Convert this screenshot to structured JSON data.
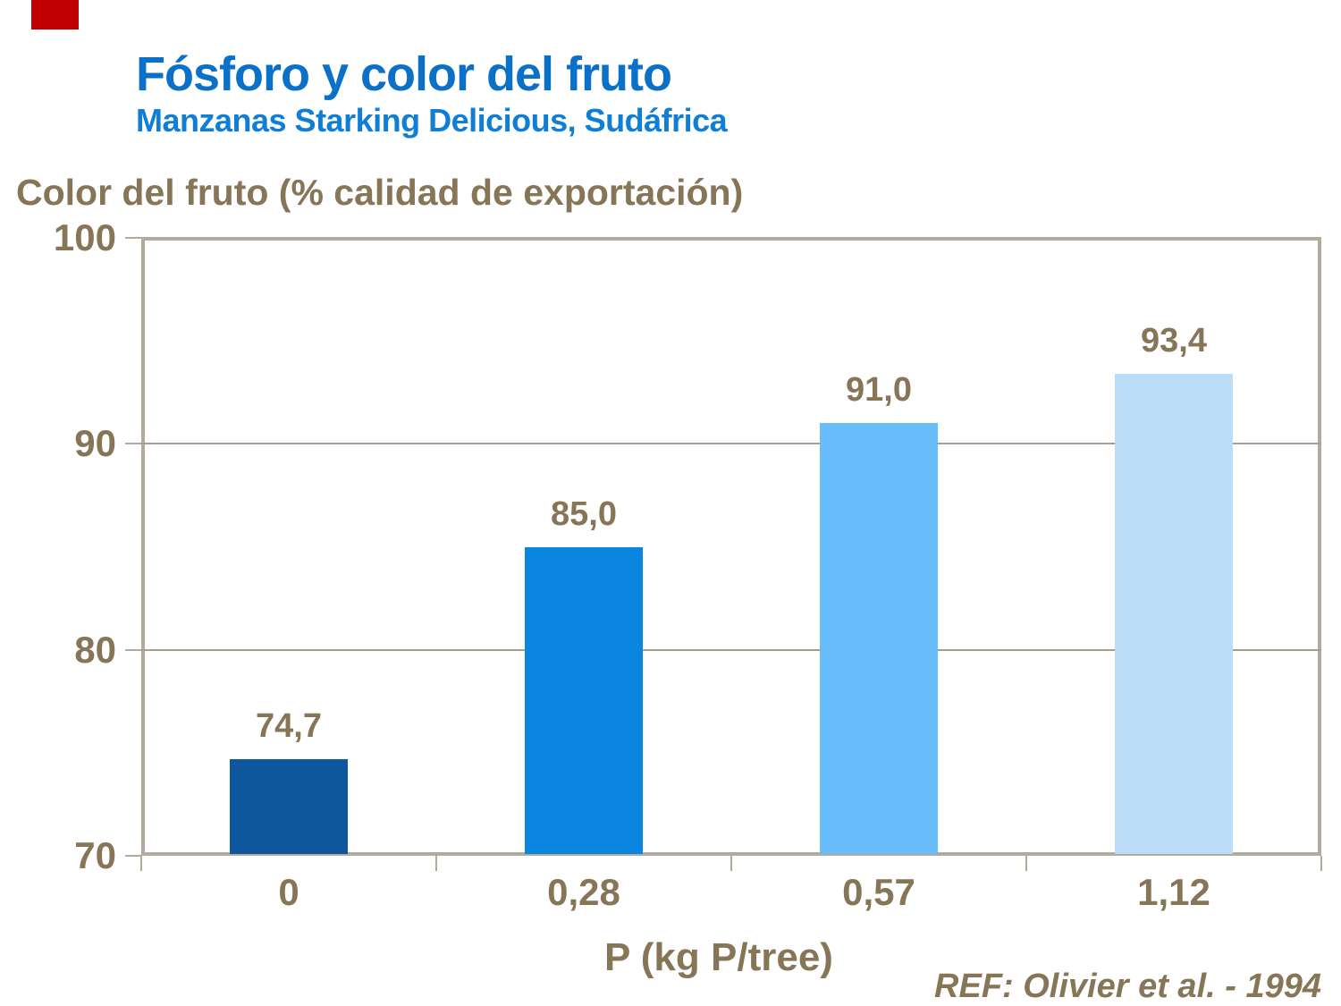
{
  "header": {
    "title": "Fósforo y color del fruto",
    "subtitle": "Manzanas Starking Delicious, Sudáfrica"
  },
  "chart_data": {
    "type": "bar",
    "title": "Fósforo y color del fruto",
    "subtitle": "Manzanas Starking Delicious, Sudáfrica",
    "categories": [
      "0",
      "0,28",
      "0,57",
      "1,12"
    ],
    "values": [
      74.7,
      85.0,
      91.0,
      93.4
    ],
    "value_labels": [
      "74,7",
      "85,0",
      "91,0",
      "93,4"
    ],
    "bar_colors": [
      "#0e579e",
      "#0a86e1",
      "#69bdfb",
      "#bbddf8"
    ],
    "xlabel": "P (kg P/tree)",
    "ylabel": "Color del fruto (% calidad de exportación)",
    "ylim": [
      70,
      100
    ],
    "yticks": [
      70,
      80,
      90,
      100
    ],
    "gridlines_at": [
      80,
      90
    ],
    "grid": true,
    "legend_position": "none"
  },
  "footer": {
    "reference": "REF: Olivier et al. - 1994"
  },
  "colors": {
    "title_blue": "#0b70c7",
    "subtitle_blue": "#0e7ed6",
    "text_brown": "#867657",
    "frame_tan": "#b3aa9d",
    "gridline_tan": "#a79d8f",
    "accent_red": "#c00000"
  }
}
